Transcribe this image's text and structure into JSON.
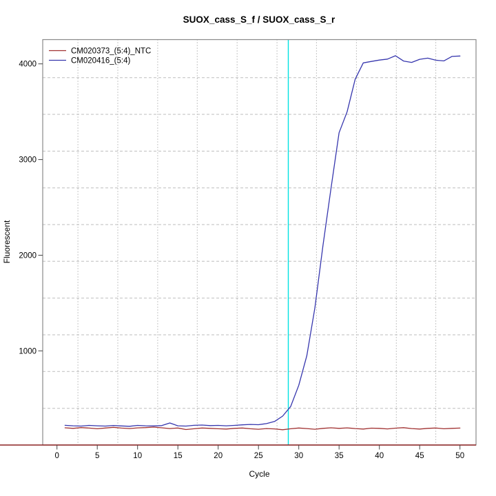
{
  "chart_data": {
    "type": "line",
    "title": "SUOX_cass_S_f / SUOX_cass_S_r",
    "xlabel": "Cycle",
    "ylabel": "Fluorescent",
    "x_ticks": [
      0,
      5,
      10,
      15,
      20,
      25,
      30,
      35,
      40,
      45,
      50
    ],
    "y_ticks": [
      1000,
      2000,
      3000,
      4000
    ],
    "xlim": [
      -1.8,
      52
    ],
    "ylim": [
      15,
      4253
    ],
    "x_start_cycle": 1,
    "legend_position": "top-left",
    "threshold_cycle": 28.7,
    "threshold_color": "#00e2e2",
    "axis_line_color": "#8b2121",
    "frame_color": "#888888",
    "grid_color": "#bdbdbd",
    "grid": {
      "h_values": [
        400,
        784,
        1168,
        1552,
        1936,
        2320,
        2704,
        3088,
        3472,
        3856
      ],
      "v_cycles": [
        2.6,
        7.55,
        12.5,
        17.4,
        22.35,
        27.3,
        32.2,
        37.15,
        42.1,
        47.0
      ]
    },
    "series": [
      {
        "name": "CM020373_(5:4)_NTC",
        "color": "#a03030",
        "values": [
          196,
          190,
          198,
          193,
          186,
          194,
          201,
          193,
          188,
          195,
          198,
          203,
          196,
          188,
          194,
          178,
          186,
          194,
          190,
          186,
          183,
          190,
          194,
          186,
          181,
          188,
          184,
          176,
          186,
          194,
          188,
          181,
          190,
          196,
          190,
          195,
          188,
          183,
          192,
          190,
          184,
          192,
          197,
          188,
          183,
          190,
          194,
          186,
          190,
          193
        ]
      },
      {
        "name": "CM020416_(5:4)",
        "color": "#3535ad",
        "values": [
          222,
          217,
          214,
          221,
          217,
          214,
          220,
          215,
          212,
          221,
          217,
          215,
          219,
          246,
          217,
          214,
          222,
          225,
          219,
          221,
          217,
          221,
          227,
          231,
          228,
          240,
          262,
          318,
          420,
          640,
          950,
          1450,
          2100,
          2700,
          3280,
          3500,
          3840,
          4010,
          4025,
          4040,
          4050,
          4085,
          4030,
          4015,
          4048,
          4060,
          4038,
          4031,
          4078,
          4082
        ]
      }
    ]
  }
}
